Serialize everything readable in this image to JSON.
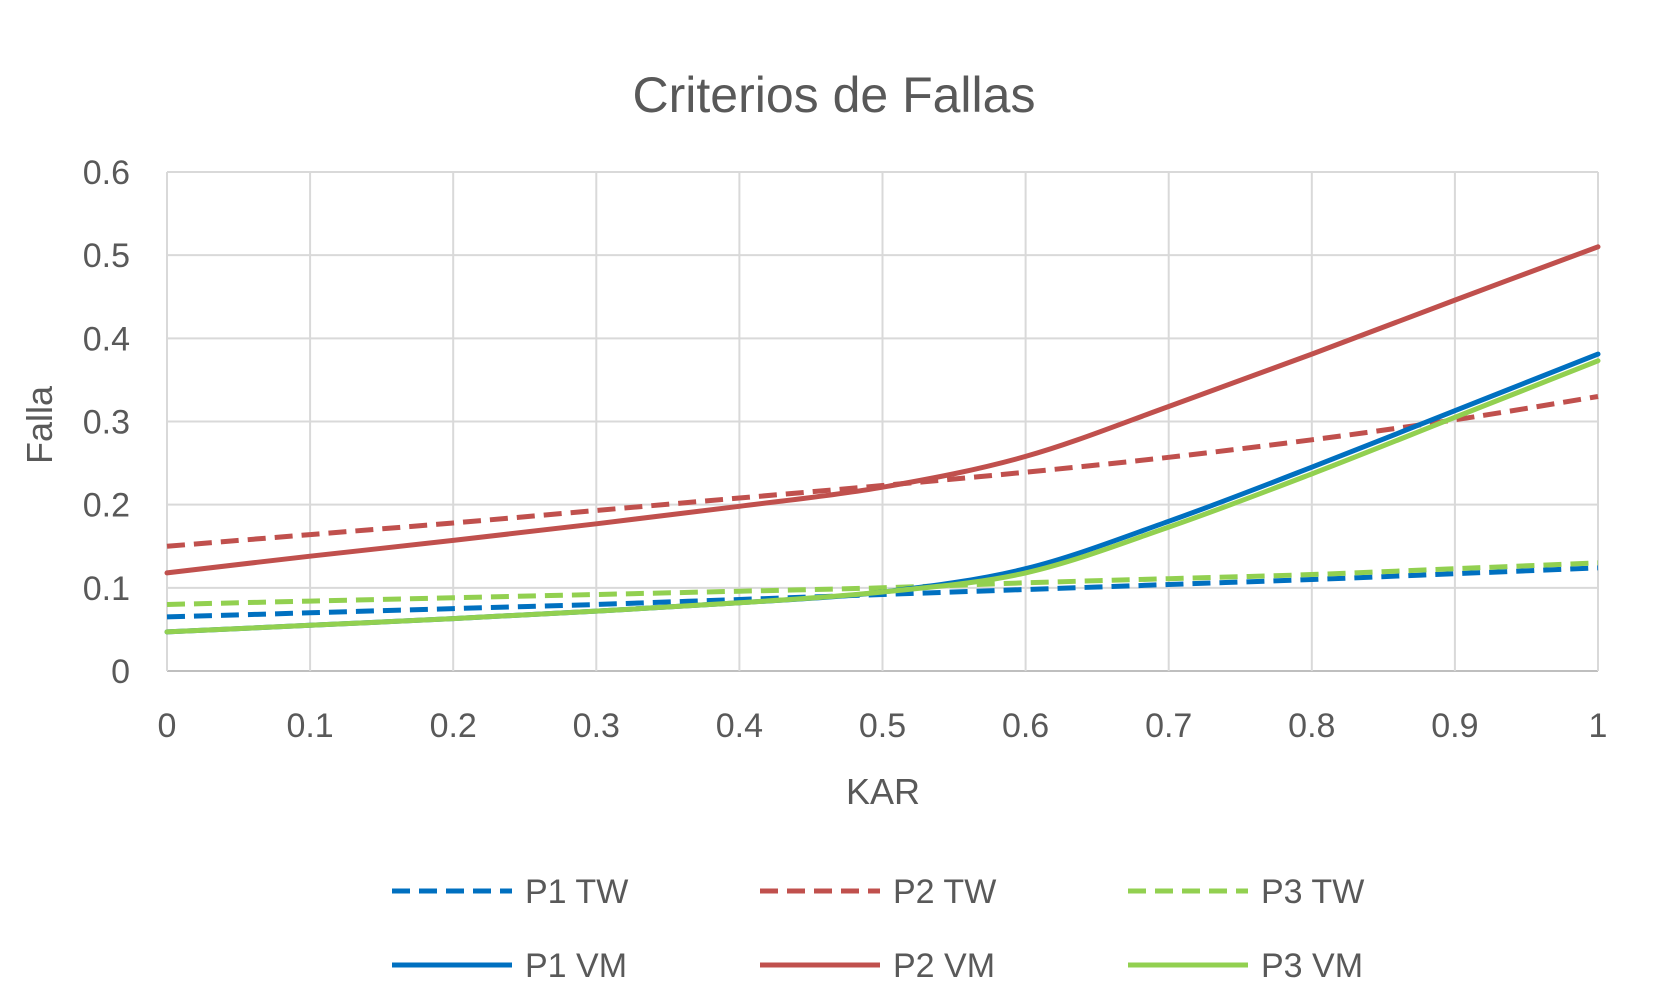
{
  "chart_data": {
    "type": "line",
    "title": "Criterios de Fallas",
    "xlabel": "KAR",
    "ylabel": "Falla",
    "xlim": [
      0,
      1
    ],
    "ylim": [
      0,
      0.6
    ],
    "x_ticks": [
      "0",
      "0.1",
      "0.2",
      "0.3",
      "0.4",
      "0.5",
      "0.6",
      "0.7",
      "0.8",
      "0.9",
      "1"
    ],
    "y_ticks": [
      "0",
      "0.1",
      "0.2",
      "0.3",
      "0.4",
      "0.5",
      "0.6"
    ],
    "grid": true,
    "legend_position": "bottom",
    "x": [
      0,
      0.1,
      0.2,
      0.3,
      0.4,
      0.5,
      0.6,
      0.7,
      0.8,
      0.9,
      1
    ],
    "series": [
      {
        "name": "P1 TW",
        "color": "#0070c0",
        "dashed": true,
        "values": [
          0.065,
          0.07,
          0.075,
          0.08,
          0.086,
          0.092,
          0.098,
          0.104,
          0.11,
          0.117,
          0.124
        ]
      },
      {
        "name": "P2 TW",
        "color": "#c0504d",
        "dashed": true,
        "values": [
          0.15,
          0.164,
          0.178,
          0.193,
          0.208,
          0.223,
          0.239,
          0.257,
          0.278,
          0.302,
          0.33
        ]
      },
      {
        "name": "P3 TW",
        "color": "#92d050",
        "dashed": true,
        "values": [
          0.08,
          0.084,
          0.088,
          0.092,
          0.096,
          0.1,
          0.106,
          0.111,
          0.116,
          0.123,
          0.13
        ]
      },
      {
        "name": "P1 VM",
        "color": "#0070c0",
        "dashed": false,
        "values": [
          0.047,
          0.055,
          0.063,
          0.072,
          0.082,
          0.095,
          0.123,
          0.18,
          0.245,
          0.313,
          0.381
        ]
      },
      {
        "name": "P2 VM",
        "color": "#c0504d",
        "dashed": false,
        "values": [
          0.118,
          0.138,
          0.157,
          0.177,
          0.198,
          0.221,
          0.258,
          0.318,
          0.381,
          0.446,
          0.51
        ]
      },
      {
        "name": "P3 VM",
        "color": "#92d050",
        "dashed": false,
        "values": [
          0.047,
          0.055,
          0.063,
          0.072,
          0.082,
          0.095,
          0.118,
          0.173,
          0.237,
          0.305,
          0.373
        ]
      }
    ]
  }
}
